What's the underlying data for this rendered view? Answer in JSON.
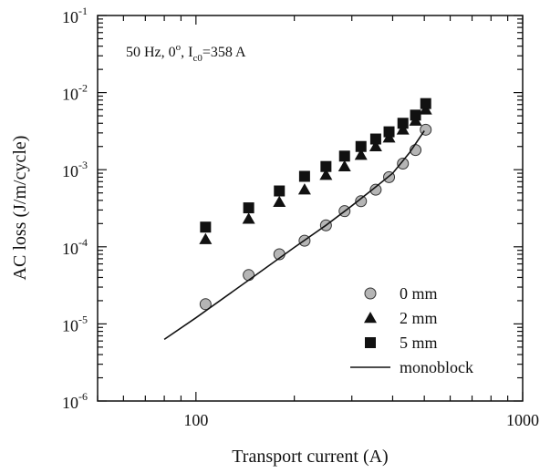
{
  "chart_data": {
    "type": "scatter",
    "title": "",
    "annotation": {
      "prefix": "50 Hz, 0",
      "deg": "o",
      "mid": ", I",
      "sub": "c0",
      "suffix": "=358 A"
    },
    "xlabel": "Transport current (A)",
    "ylabel": "AC loss (J/m/cycle)",
    "x_scale": "log",
    "y_scale": "log",
    "xlim": [
      50,
      1000
    ],
    "ylim": [
      1e-06,
      0.1
    ],
    "x_ticks": [
      {
        "value": 100,
        "label": "100"
      },
      {
        "value": 1000,
        "label": "1000"
      }
    ],
    "y_ticks": [
      {
        "value": 1e-06,
        "base": "10",
        "exp": "-6"
      },
      {
        "value": 1e-05,
        "base": "10",
        "exp": "-5"
      },
      {
        "value": 0.0001,
        "base": "10",
        "exp": "-4"
      },
      {
        "value": 0.001,
        "base": "10",
        "exp": "-3"
      },
      {
        "value": 0.01,
        "base": "10",
        "exp": "-2"
      },
      {
        "value": 0.1,
        "base": "10",
        "exp": "-1"
      }
    ],
    "grid": false,
    "legend_position": "bottom-right",
    "series": [
      {
        "name": "0 mm",
        "marker": "circle",
        "color": "#b5b5b5",
        "x": [
          107,
          145,
          180,
          215,
          250,
          285,
          320,
          355,
          390,
          430,
          470,
          505
        ],
        "y": [
          1.8e-05,
          4.3e-05,
          8e-05,
          0.00012,
          0.00019,
          0.00029,
          0.00039,
          0.00055,
          0.0008,
          0.0012,
          0.0018,
          0.0033
        ]
      },
      {
        "name": "2 mm",
        "marker": "triangle",
        "color": "#111111",
        "x": [
          107,
          145,
          180,
          215,
          250,
          285,
          320,
          355,
          390,
          430,
          470,
          505
        ],
        "y": [
          0.000125,
          0.00023,
          0.00038,
          0.00055,
          0.00085,
          0.0011,
          0.00155,
          0.002,
          0.0026,
          0.0033,
          0.0043,
          0.006
        ]
      },
      {
        "name": "5 mm",
        "marker": "square",
        "color": "#111111",
        "x": [
          107,
          145,
          180,
          215,
          250,
          285,
          320,
          355,
          390,
          430,
          470,
          505
        ],
        "y": [
          0.00018,
          0.00032,
          0.00053,
          0.00082,
          0.0011,
          0.0015,
          0.002,
          0.0025,
          0.0031,
          0.004,
          0.0051,
          0.0072
        ]
      },
      {
        "name": "monoblock",
        "marker": "line",
        "color": "#111111",
        "x": [
          80,
          100,
          150,
          200,
          250,
          300,
          350,
          400,
          450,
          500
        ],
        "y": [
          6.3e-06,
          1.2e-05,
          4.1e-05,
          9.8e-05,
          0.00019,
          0.00034,
          0.00057,
          0.0009,
          0.00165,
          0.0032
        ]
      }
    ]
  }
}
